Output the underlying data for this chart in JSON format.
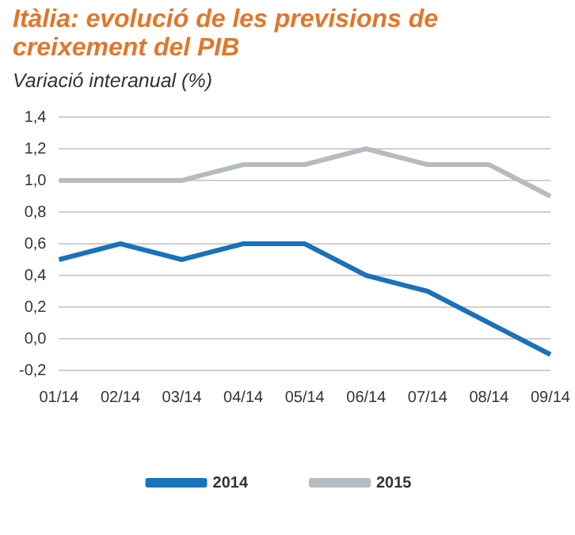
{
  "chart_data": {
    "type": "line",
    "title": "Itàlia: evolució de les previsions de creixement del PIB",
    "subtitle": "Variació interanual (%)",
    "categories": [
      "01/14",
      "02/14",
      "03/14",
      "04/14",
      "05/14",
      "06/14",
      "07/14",
      "08/14",
      "09/14"
    ],
    "series": [
      {
        "name": "2014",
        "color": "#1a72b8",
        "values": [
          0.5,
          0.6,
          0.5,
          0.6,
          0.6,
          0.4,
          0.3,
          0.1,
          -0.1
        ]
      },
      {
        "name": "2015",
        "color": "#b4bcc1",
        "values": [
          1.0,
          1.0,
          1.0,
          1.1,
          1.1,
          1.2,
          1.1,
          1.1,
          0.9
        ]
      }
    ],
    "ylim": [
      -0.2,
      1.4
    ],
    "yticks": [
      {
        "value": -0.2,
        "label": "-0,2"
      },
      {
        "value": 0,
        "label": "0,0"
      },
      {
        "value": 0.2,
        "label": "0,2"
      },
      {
        "value": 0.4,
        "label": "0,4"
      },
      {
        "value": 0.6,
        "label": "0,6"
      },
      {
        "value": 0.8,
        "label": "0,8"
      },
      {
        "value": 1.0,
        "label": "1,0"
      },
      {
        "value": 1.2,
        "label": "1,2"
      },
      {
        "value": 1.4,
        "label": "1,4"
      }
    ],
    "grid": "y",
    "legend": "bottom",
    "marker": "none",
    "line_style": "solid"
  }
}
